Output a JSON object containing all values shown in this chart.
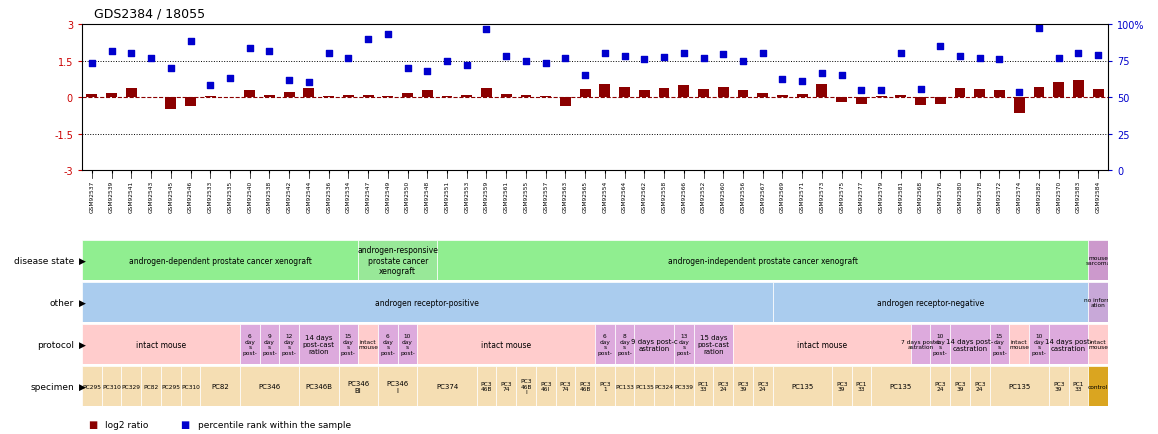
{
  "title": "GDS2384 / 18055",
  "gsm_labels": [
    "GSM92537",
    "GSM92539",
    "GSM92541",
    "GSM92543",
    "GSM92545",
    "GSM92546",
    "GSM92533",
    "GSM92535",
    "GSM92540",
    "GSM92538",
    "GSM92542",
    "GSM92544",
    "GSM92536",
    "GSM92534",
    "GSM92547",
    "GSM92549",
    "GSM92550",
    "GSM92548",
    "GSM92551",
    "GSM92553",
    "GSM92559",
    "GSM92561",
    "GSM92555",
    "GSM92557",
    "GSM92563",
    "GSM92565",
    "GSM92554",
    "GSM92564",
    "GSM92562",
    "GSM92558",
    "GSM92566",
    "GSM92552",
    "GSM92560",
    "GSM92556",
    "GSM92567",
    "GSM92569",
    "GSM92571",
    "GSM92573",
    "GSM92575",
    "GSM92577",
    "GSM92579",
    "GSM92581",
    "GSM92568",
    "GSM92576",
    "GSM92580",
    "GSM92578",
    "GSM92572",
    "GSM92574",
    "GSM92582",
    "GSM92570",
    "GSM92583",
    "GSM92584"
  ],
  "log2_ratio": [
    0.12,
    0.18,
    0.35,
    0.0,
    -0.5,
    -0.35,
    0.05,
    0.02,
    0.28,
    0.1,
    0.22,
    0.38,
    0.05,
    0.08,
    0.1,
    0.05,
    0.15,
    0.28,
    0.05,
    0.1,
    0.38,
    0.12,
    0.08,
    0.05,
    -0.38,
    0.32,
    0.52,
    0.42,
    0.28,
    0.38,
    0.48,
    0.32,
    0.42,
    0.28,
    0.18,
    0.08,
    0.12,
    0.52,
    -0.22,
    -0.28,
    0.06,
    0.1,
    -0.32,
    -0.28,
    0.38,
    0.32,
    0.28,
    -0.65,
    0.42,
    0.62,
    0.68,
    0.32
  ],
  "percentile_rank_y": [
    1.4,
    1.9,
    1.8,
    1.6,
    1.2,
    2.3,
    0.5,
    0.8,
    2.0,
    1.9,
    0.7,
    0.6,
    1.8,
    1.6,
    2.4,
    2.6,
    1.2,
    1.05,
    1.5,
    1.3,
    2.8,
    1.7,
    1.5,
    1.4,
    1.6,
    0.9,
    1.8,
    1.7,
    1.55,
    1.65,
    1.8,
    1.6,
    1.75,
    1.5,
    1.8,
    0.75,
    0.65,
    1.0,
    0.9,
    0.3,
    0.28,
    1.8,
    0.32,
    2.1,
    1.7,
    1.6,
    1.55,
    0.22,
    2.85,
    1.6,
    1.8,
    1.72
  ],
  "n_samples": 52,
  "bar_color": "#8B0000",
  "scatter_color": "#0000CD",
  "disease_state_rows": [
    {
      "label": "androgen-dependent prostate cancer xenograft",
      "start": 0,
      "end": 14,
      "color": "#90EE90"
    },
    {
      "label": "androgen-responsive\nprostate cancer\nxenograft",
      "start": 14,
      "end": 18,
      "color": "#98E898"
    },
    {
      "label": "androgen-independent prostate cancer xenograft",
      "start": 18,
      "end": 51,
      "color": "#90EE90"
    },
    {
      "label": "mouse\nsarcoma",
      "start": 51,
      "end": 52,
      "color": "#CC99CC"
    }
  ],
  "other_rows": [
    {
      "label": "androgen receptor-positive",
      "start": 0,
      "end": 35,
      "color": "#AACCEE"
    },
    {
      "label": "androgen receptor-negative",
      "start": 35,
      "end": 51,
      "color": "#AACCEE"
    },
    {
      "label": "no inform\nation",
      "start": 51,
      "end": 52,
      "color": "#C8A8D8"
    }
  ],
  "protocol_rows": [
    {
      "label": "intact mouse",
      "start": 0,
      "end": 8,
      "color": "#FFCCCC"
    },
    {
      "label": "6\nday\ns\npost-",
      "start": 8,
      "end": 9,
      "color": "#DDAADD"
    },
    {
      "label": "9\nday\ns\npost-",
      "start": 9,
      "end": 10,
      "color": "#DDAADD"
    },
    {
      "label": "12\nday\ns\npost-",
      "start": 10,
      "end": 11,
      "color": "#DDAADD"
    },
    {
      "label": "14 days\npost-cast\nration",
      "start": 11,
      "end": 13,
      "color": "#DDAADD"
    },
    {
      "label": "15\nday\ns\npost-",
      "start": 13,
      "end": 14,
      "color": "#DDAADD"
    },
    {
      "label": "intact\nmouse",
      "start": 14,
      "end": 15,
      "color": "#FFCCCC"
    },
    {
      "label": "6\nday\ns\npost-",
      "start": 15,
      "end": 16,
      "color": "#DDAADD"
    },
    {
      "label": "10\nday\ns\npost-",
      "start": 16,
      "end": 17,
      "color": "#DDAADD"
    },
    {
      "label": "intact mouse",
      "start": 17,
      "end": 26,
      "color": "#FFCCCC"
    },
    {
      "label": "6\nday\ns\npost-",
      "start": 26,
      "end": 27,
      "color": "#DDAADD"
    },
    {
      "label": "8\nday\ns\npost-",
      "start": 27,
      "end": 28,
      "color": "#DDAADD"
    },
    {
      "label": "9 days post-c\nastration",
      "start": 28,
      "end": 30,
      "color": "#DDAADD"
    },
    {
      "label": "13\nday\ns\npost-",
      "start": 30,
      "end": 31,
      "color": "#DDAADD"
    },
    {
      "label": "15 days\npost-cast\nration",
      "start": 31,
      "end": 33,
      "color": "#DDAADD"
    },
    {
      "label": "intact mouse",
      "start": 33,
      "end": 42,
      "color": "#FFCCCC"
    },
    {
      "label": "7 days post-c\nastration",
      "start": 42,
      "end": 43,
      "color": "#DDAADD"
    },
    {
      "label": "10\nday\ns\npost-",
      "start": 43,
      "end": 44,
      "color": "#DDAADD"
    },
    {
      "label": "14 days post-\ncastration",
      "start": 44,
      "end": 46,
      "color": "#DDAADD"
    },
    {
      "label": "15\nday\ns\npost-",
      "start": 46,
      "end": 47,
      "color": "#DDAADD"
    },
    {
      "label": "intact\nmouse",
      "start": 47,
      "end": 48,
      "color": "#FFCCCC"
    },
    {
      "label": "10\nday\ns\npost-",
      "start": 48,
      "end": 49,
      "color": "#DDAADD"
    },
    {
      "label": "14 days post-\ncastration",
      "start": 49,
      "end": 51,
      "color": "#DDAADD"
    },
    {
      "label": "intact\nmouse",
      "start": 51,
      "end": 52,
      "color": "#FFCCCC"
    }
  ],
  "specimen_rows": [
    {
      "label": "PC295",
      "start": 0,
      "end": 1,
      "color": "#F5DEB3"
    },
    {
      "label": "PC310",
      "start": 1,
      "end": 2,
      "color": "#F5DEB3"
    },
    {
      "label": "PC329",
      "start": 2,
      "end": 3,
      "color": "#F5DEB3"
    },
    {
      "label": "PC82",
      "start": 3,
      "end": 4,
      "color": "#F5DEB3"
    },
    {
      "label": "PC295",
      "start": 4,
      "end": 5,
      "color": "#F5DEB3"
    },
    {
      "label": "PC310",
      "start": 5,
      "end": 6,
      "color": "#F5DEB3"
    },
    {
      "label": "PC82",
      "start": 6,
      "end": 8,
      "color": "#F5DEB3"
    },
    {
      "label": "PC346",
      "start": 8,
      "end": 11,
      "color": "#F5DEB3"
    },
    {
      "label": "PC346B",
      "start": 11,
      "end": 13,
      "color": "#F5DEB3"
    },
    {
      "label": "PC346\nBI",
      "start": 13,
      "end": 15,
      "color": "#F5DEB3"
    },
    {
      "label": "PC346\nI",
      "start": 15,
      "end": 17,
      "color": "#F5DEB3"
    },
    {
      "label": "PC374",
      "start": 17,
      "end": 20,
      "color": "#F5DEB3"
    },
    {
      "label": "PC3\n46B",
      "start": 20,
      "end": 21,
      "color": "#F5DEB3"
    },
    {
      "label": "PC3\n74",
      "start": 21,
      "end": 22,
      "color": "#F5DEB3"
    },
    {
      "label": "PC3\n46B\nI",
      "start": 22,
      "end": 23,
      "color": "#F5DEB3"
    },
    {
      "label": "PC3\n46I",
      "start": 23,
      "end": 24,
      "color": "#F5DEB3"
    },
    {
      "label": "PC3\n74",
      "start": 24,
      "end": 25,
      "color": "#F5DEB3"
    },
    {
      "label": "PC3\n46B",
      "start": 25,
      "end": 26,
      "color": "#F5DEB3"
    },
    {
      "label": "PC3\n1",
      "start": 26,
      "end": 27,
      "color": "#F5DEB3"
    },
    {
      "label": "PC133",
      "start": 27,
      "end": 28,
      "color": "#F5DEB3"
    },
    {
      "label": "PC135",
      "start": 28,
      "end": 29,
      "color": "#F5DEB3"
    },
    {
      "label": "PC324",
      "start": 29,
      "end": 30,
      "color": "#F5DEB3"
    },
    {
      "label": "PC339",
      "start": 30,
      "end": 31,
      "color": "#F5DEB3"
    },
    {
      "label": "PC1\n33",
      "start": 31,
      "end": 32,
      "color": "#F5DEB3"
    },
    {
      "label": "PC3\n24",
      "start": 32,
      "end": 33,
      "color": "#F5DEB3"
    },
    {
      "label": "PC3\n39",
      "start": 33,
      "end": 34,
      "color": "#F5DEB3"
    },
    {
      "label": "PC3\n24",
      "start": 34,
      "end": 35,
      "color": "#F5DEB3"
    },
    {
      "label": "PC135",
      "start": 35,
      "end": 38,
      "color": "#F5DEB3"
    },
    {
      "label": "PC3\n39",
      "start": 38,
      "end": 39,
      "color": "#F5DEB3"
    },
    {
      "label": "PC1\n33",
      "start": 39,
      "end": 40,
      "color": "#F5DEB3"
    },
    {
      "label": "PC135",
      "start": 40,
      "end": 43,
      "color": "#F5DEB3"
    },
    {
      "label": "PC3\n24",
      "start": 43,
      "end": 44,
      "color": "#F5DEB3"
    },
    {
      "label": "PC3\n39",
      "start": 44,
      "end": 45,
      "color": "#F5DEB3"
    },
    {
      "label": "PC3\n24",
      "start": 45,
      "end": 46,
      "color": "#F5DEB3"
    },
    {
      "label": "PC135",
      "start": 46,
      "end": 49,
      "color": "#F5DEB3"
    },
    {
      "label": "PC3\n39",
      "start": 49,
      "end": 50,
      "color": "#F5DEB3"
    },
    {
      "label": "PC1\n33",
      "start": 50,
      "end": 51,
      "color": "#F5DEB3"
    },
    {
      "label": "control",
      "start": 51,
      "end": 52,
      "color": "#DAA520"
    }
  ],
  "row_labels": [
    "disease state",
    "other",
    "protocol",
    "specimen"
  ],
  "legend_bar_label": "log2 ratio",
  "legend_scatter_label": "percentile rank within the sample"
}
